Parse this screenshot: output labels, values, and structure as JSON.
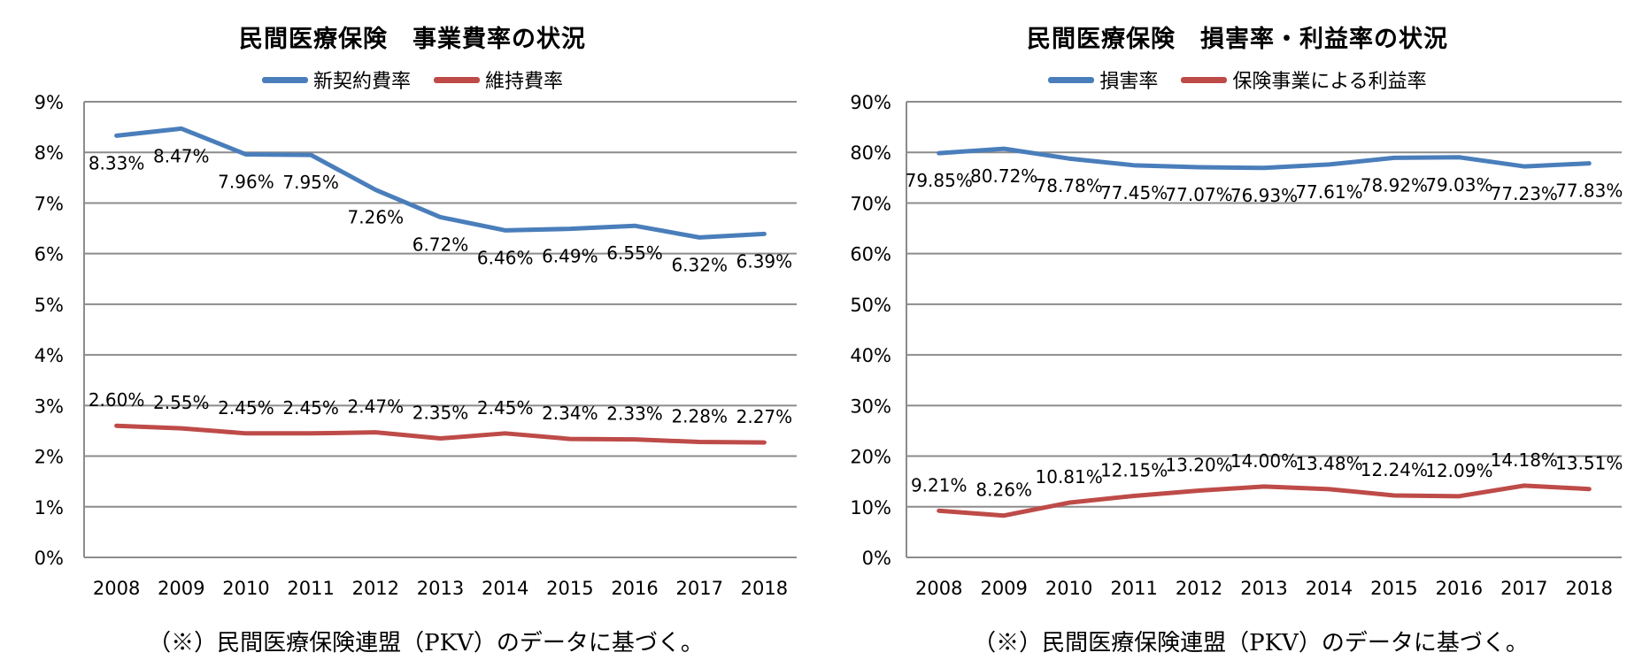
{
  "chart_data": [
    {
      "type": "line",
      "title": "民間医療保険　事業費率の状況",
      "categories": [
        "2008",
        "2009",
        "2010",
        "2011",
        "2012",
        "2013",
        "2014",
        "2015",
        "2016",
        "2017",
        "2018"
      ],
      "ylim": [
        0,
        9
      ],
      "yticks": [
        0,
        1,
        2,
        3,
        4,
        5,
        6,
        7,
        8,
        9
      ],
      "ytick_labels": [
        "0%",
        "1%",
        "2%",
        "3%",
        "4%",
        "5%",
        "6%",
        "7%",
        "8%",
        "9%"
      ],
      "series": [
        {
          "name": "新契約費率",
          "color": "#4a7ebb",
          "values": [
            8.33,
            8.47,
            7.96,
            7.95,
            7.26,
            6.72,
            6.46,
            6.49,
            6.55,
            6.32,
            6.39
          ],
          "labels": [
            "8.33%",
            "8.47%",
            "7.96%",
            "7.95%",
            "7.26%",
            "6.72%",
            "6.46%",
            "6.49%",
            "6.55%",
            "6.32%",
            "6.39%"
          ],
          "label_pos": "below"
        },
        {
          "name": "維持費率",
          "color": "#be4b48",
          "values": [
            2.6,
            2.55,
            2.45,
            2.45,
            2.47,
            2.35,
            2.45,
            2.34,
            2.33,
            2.28,
            2.27
          ],
          "labels": [
            "2.60%",
            "2.55%",
            "2.45%",
            "2.45%",
            "2.47%",
            "2.35%",
            "2.45%",
            "2.34%",
            "2.33%",
            "2.28%",
            "2.27%"
          ],
          "label_pos": "above"
        }
      ],
      "note": "（※）民間医療保険連盟（PKV）のデータに基づく。"
    },
    {
      "type": "line",
      "title": "民間医療保険　損害率・利益率の状況",
      "categories": [
        "2008",
        "2009",
        "2010",
        "2011",
        "2012",
        "2013",
        "2014",
        "2015",
        "2016",
        "2017",
        "2018"
      ],
      "ylim": [
        0,
        90
      ],
      "yticks": [
        0,
        10,
        20,
        30,
        40,
        50,
        60,
        70,
        80,
        90
      ],
      "ytick_labels": [
        "0%",
        "10%",
        "20%",
        "30%",
        "40%",
        "50%",
        "60%",
        "70%",
        "80%",
        "90%"
      ],
      "series": [
        {
          "name": "損害率",
          "color": "#4a7ebb",
          "values": [
            79.85,
            80.72,
            78.78,
            77.45,
            77.07,
            76.93,
            77.61,
            78.92,
            79.03,
            77.23,
            77.83
          ],
          "labels": [
            "79.85%",
            "80.72%",
            "78.78%",
            "77.45%",
            "77.07%",
            "76.93%",
            "77.61%",
            "78.92%",
            "79.03%",
            "77.23%",
            "77.83%"
          ],
          "label_pos": "below"
        },
        {
          "name": "保険事業による利益率",
          "color": "#be4b48",
          "values": [
            9.21,
            8.26,
            10.81,
            12.15,
            13.2,
            14.0,
            13.48,
            12.24,
            12.09,
            14.18,
            13.51
          ],
          "labels": [
            "9.21%",
            "8.26%",
            "10.81%",
            "12.15%",
            "13.20%",
            "14.00%",
            "13.48%",
            "12.24%",
            "12.09%",
            "14.18%",
            "13.51%"
          ],
          "label_pos": "above"
        }
      ],
      "note": "（※）民間医療保険連盟（PKV）のデータに基づく。"
    }
  ]
}
